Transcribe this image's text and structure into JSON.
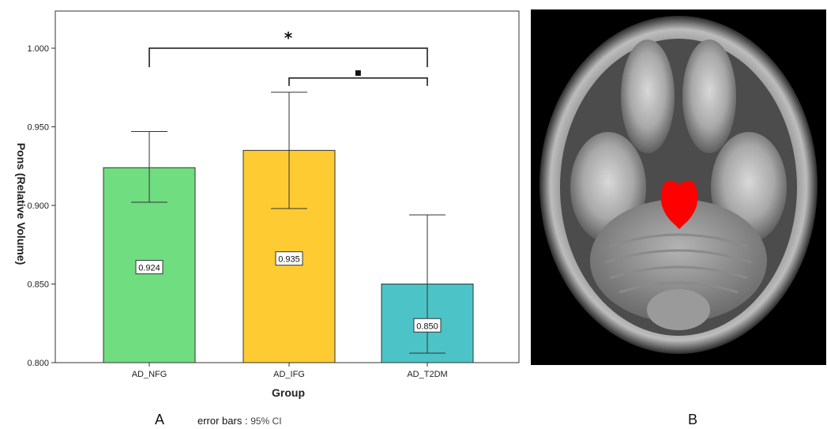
{
  "chart_data": {
    "type": "bar",
    "categories": [
      "AD_NFG",
      "AD_IFG",
      "AD_T2DM"
    ],
    "values": [
      0.924,
      0.935,
      0.85
    ],
    "value_labels": [
      "0.924",
      "0.935",
      "0.850"
    ],
    "error_bars": {
      "lower": [
        0.902,
        0.898,
        0.806
      ],
      "upper": [
        0.947,
        0.972,
        0.894
      ]
    },
    "bar_colors": [
      "#6fdd80",
      "#ffcb33",
      "#4cc3c6"
    ],
    "ylim": [
      0.8,
      1.0
    ],
    "yticks": [
      "0.800",
      "0.850",
      "0.900",
      "0.950",
      "1.000"
    ],
    "ylabel": "Pons (Relative Volume)",
    "xlabel": "Group",
    "grid": false,
    "significance": [
      {
        "from": "AD_NFG",
        "to": "AD_T2DM",
        "y": 1.0,
        "symbol": "*"
      },
      {
        "from": "AD_IFG",
        "to": "AD_T2DM",
        "y": 0.981,
        "symbol": "▪"
      }
    ]
  },
  "panels": {
    "left_label": "A",
    "right_label": "B"
  },
  "footnote": {
    "label": "error bars :",
    "value": "95% CI"
  },
  "image": {
    "roi_color": "#ff0000"
  }
}
